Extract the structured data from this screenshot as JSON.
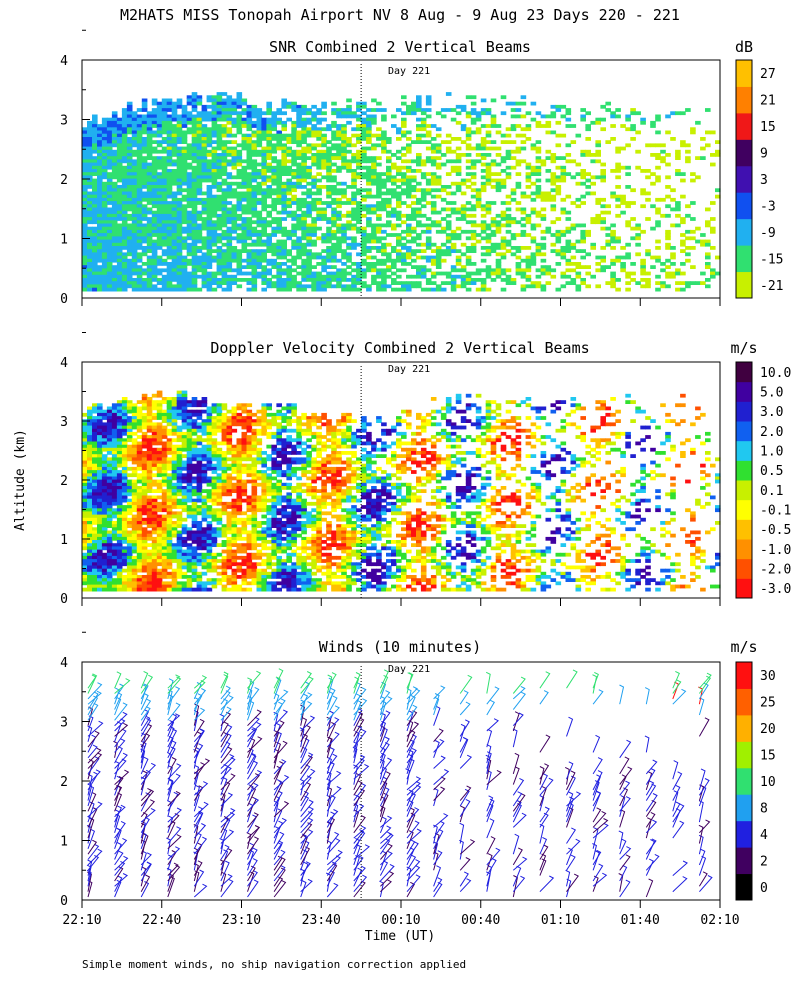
{
  "figure": {
    "title": "M2HATS MISS Tonopah Airport NV   8 Aug -  9 Aug 23 Days 220 - 221",
    "ylabel": "Altitude (km)",
    "xlabel": "Time (UT)",
    "day_marker_label": "Day 221",
    "footnote": "Simple moment winds, no ship navigation correction applied"
  },
  "chart_data": [
    {
      "type": "heatmap",
      "title": "SNR Combined 2 Vertical Beams",
      "units": "dB",
      "ylabel": "Altitude (km)",
      "xlabel": "Time (UT)",
      "ylim": [
        0,
        4
      ],
      "y_ticks": [
        "0",
        "1",
        "2",
        "3",
        "4"
      ],
      "x_ticks": [
        "22:10",
        "22:40",
        "23:10",
        "23:40",
        "00:10",
        "00:40",
        "01:10",
        "01:40",
        "02:10"
      ],
      "day_marker": "23:55",
      "colorbar": {
        "labels": [
          "-21",
          "-15",
          "-9",
          "-3",
          "3",
          "9",
          "15",
          "21",
          "27"
        ],
        "colors": [
          "#c8f000",
          "#30e070",
          "#20b0f0",
          "#1050f0",
          "#4010b0",
          "#400060",
          "#f01818",
          "#ff8000",
          "#ffc000"
        ]
      },
      "data_top_km": [
        3.0,
        3.3,
        3.4,
        3.2,
        3.3,
        3.3,
        3.4,
        3.3,
        3.2,
        3.3
      ]
    },
    {
      "type": "heatmap",
      "title": "Doppler Velocity Combined 2 Vertical Beams",
      "units": "m/s",
      "ylabel": "Altitude (km)",
      "xlabel": "Time (UT)",
      "ylim": [
        0,
        4
      ],
      "y_ticks": [
        "0",
        "1",
        "2",
        "3",
        "4"
      ],
      "x_ticks": [
        "22:10",
        "22:40",
        "23:10",
        "23:40",
        "00:10",
        "00:40",
        "01:10",
        "01:40",
        "02:10"
      ],
      "day_marker": "23:55",
      "colorbar": {
        "labels": [
          "-3.0",
          "-2.0",
          "-1.0",
          "-0.5",
          "-0.1",
          "0.1",
          "0.5",
          "1.0",
          "2.0",
          "3.0",
          "5.0",
          "10.0"
        ],
        "colors": [
          "#ff1010",
          "#ff5000",
          "#ff9000",
          "#ffc000",
          "#ffff00",
          "#c8f000",
          "#30e030",
          "#20c8f0",
          "#1060f0",
          "#2020d0",
          "#4000a0",
          "#400040"
        ]
      },
      "data_top_km": [
        3.2,
        3.5,
        3.3,
        3.2,
        3.0,
        3.3,
        3.4,
        3.4,
        3.5,
        3.3
      ]
    },
    {
      "type": "scatter",
      "subtype": "wind-barbs",
      "title": "Winds (10 minutes)",
      "units": "m/s",
      "ylabel": "Altitude (km)",
      "xlabel": "Time (UT)",
      "ylim": [
        0,
        4
      ],
      "y_ticks": [
        "0",
        "1",
        "2",
        "3",
        "4"
      ],
      "x_ticks": [
        "22:10",
        "22:40",
        "23:10",
        "23:40",
        "00:10",
        "00:40",
        "01:10",
        "01:40",
        "02:10"
      ],
      "day_marker": "23:55",
      "colorbar": {
        "labels": [
          "0",
          "2",
          "4",
          "8",
          "10",
          "15",
          "20",
          "25",
          "30"
        ],
        "colors": [
          "#000000",
          "#400060",
          "#2020e0",
          "#20a0f0",
          "#30e070",
          "#a0f000",
          "#ffb000",
          "#ff6000",
          "#ff1010"
        ]
      },
      "profile_times": [
        "22:10",
        "22:20",
        "22:30",
        "22:40",
        "22:50",
        "23:00",
        "23:10",
        "23:20",
        "23:30",
        "23:40",
        "23:50",
        "00:00",
        "00:10",
        "00:20",
        "00:30",
        "00:40",
        "00:50",
        "01:00",
        "01:10",
        "01:20",
        "01:30",
        "01:40",
        "01:50",
        "02:00"
      ]
    }
  ]
}
